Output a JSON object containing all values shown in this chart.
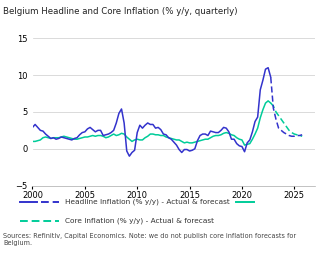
{
  "title": "Belgium Headline and Core Inflation (% y/y, quarterly)",
  "ylim": [
    -5,
    15
  ],
  "yticks": [
    -5,
    0,
    5,
    10,
    15
  ],
  "xlim": [
    2000,
    2027
  ],
  "xticks": [
    2000,
    2005,
    2010,
    2015,
    2020,
    2025
  ],
  "headline_actual_y": [
    2.9,
    3.3,
    2.9,
    2.5,
    2.4,
    2.0,
    1.7,
    1.4,
    1.5,
    1.3,
    1.4,
    1.6,
    1.5,
    1.4,
    1.3,
    1.2,
    1.4,
    1.5,
    1.9,
    2.2,
    2.3,
    2.7,
    2.9,
    2.6,
    2.3,
    2.5,
    2.5,
    1.8,
    1.9,
    2.0,
    2.2,
    2.5,
    3.5,
    4.8,
    5.4,
    3.5,
    -0.3,
    -1.0,
    -0.5,
    -0.2,
    2.2,
    3.2,
    2.8,
    3.2,
    3.5,
    3.3,
    3.3,
    2.8,
    2.9,
    2.6,
    2.0,
    1.9,
    1.5,
    1.3,
    0.9,
    0.5,
    -0.1,
    -0.5,
    -0.1,
    -0.1,
    -0.3,
    -0.2,
    0.0,
    1.1,
    1.8,
    2.0,
    2.0,
    1.8,
    2.4,
    2.3,
    2.2,
    2.2,
    2.5,
    2.9,
    2.8,
    2.3,
    1.3,
    1.3,
    0.7,
    0.4,
    0.3,
    -0.4,
    0.8,
    1.2,
    2.3,
    3.7,
    4.3,
    8.0,
    9.3,
    10.8,
    11.0,
    9.7
  ],
  "headline_forecast_y": [
    9.7,
    5.5,
    4.0,
    2.8,
    2.5,
    2.2,
    2.0,
    1.8,
    1.7,
    1.7,
    1.8,
    1.8,
    1.9
  ],
  "core_actual_y": [
    1.0,
    1.0,
    1.1,
    1.2,
    1.5,
    1.6,
    1.5,
    1.4,
    1.5,
    1.5,
    1.5,
    1.6,
    1.7,
    1.6,
    1.5,
    1.4,
    1.3,
    1.3,
    1.4,
    1.5,
    1.6,
    1.6,
    1.7,
    1.8,
    1.7,
    1.8,
    1.8,
    1.7,
    1.5,
    1.6,
    1.8,
    2.0,
    1.8,
    1.9,
    2.1,
    2.0,
    1.6,
    1.3,
    1.0,
    1.2,
    1.3,
    1.2,
    1.2,
    1.5,
    1.7,
    2.0,
    2.0,
    1.9,
    1.9,
    1.8,
    1.8,
    1.6,
    1.5,
    1.4,
    1.3,
    1.2,
    1.2,
    1.0,
    0.8,
    0.9,
    0.8,
    0.8,
    0.9,
    1.0,
    1.1,
    1.2,
    1.3,
    1.3,
    1.5,
    1.7,
    1.8,
    1.8,
    1.9,
    2.1,
    2.2,
    2.1,
    1.9,
    1.8,
    1.5,
    1.3,
    1.2,
    0.5,
    0.6,
    0.7,
    1.3,
    2.0,
    2.8,
    4.2,
    5.3,
    6.2,
    6.5,
    6.2
  ],
  "core_forecast_y": [
    6.2,
    5.8,
    5.0,
    4.5,
    4.0,
    3.5,
    3.0,
    2.5,
    2.2,
    2.0,
    1.9,
    1.8,
    1.7
  ],
  "headline_color": "#3333cc",
  "core_color": "#00cc99",
  "source_text": "Sources: Refinitiv, Capital Economics. Note: we do not publish core inflation forecasts for\nBelgium.",
  "legend_headline": "Headline Inflation (% y/y) - Actual & forecast",
  "legend_core": "Core Inflation (% y/y) - Actual & forecast",
  "bg_color": "#ffffff",
  "grid_color": "#cccccc"
}
